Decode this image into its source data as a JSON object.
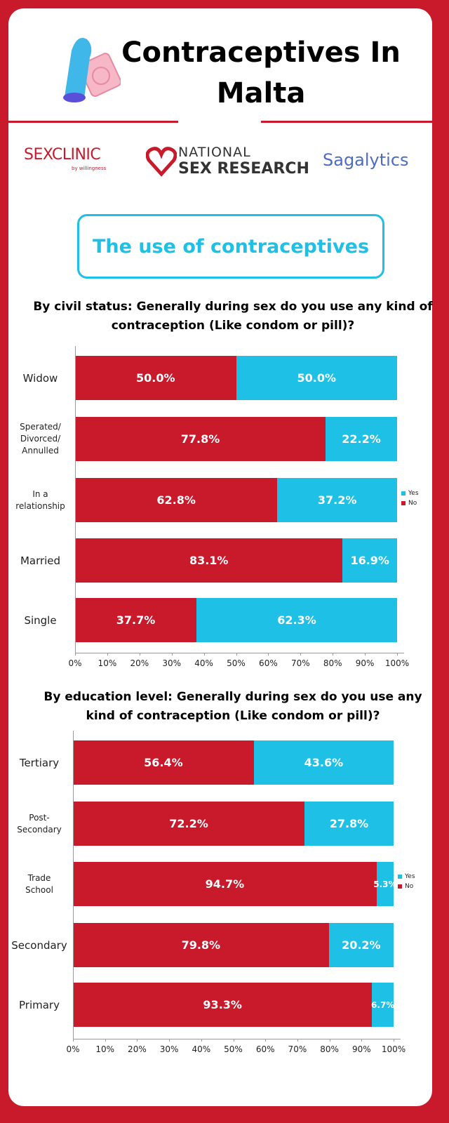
{
  "header": {
    "title": "Contraceptives In Malta",
    "section_title": "The use of contraceptives",
    "logos": {
      "sex_clinic": "SEXCLINIC",
      "sex_clinic_tagline": "by willingness",
      "national_top": "NATIONAL",
      "national_bottom": "SEX RESEARCH",
      "sagalytics": "Sagalytics"
    }
  },
  "chart_data": [
    {
      "type": "stacked-bar-horizontal",
      "title": "By civil status: Generally during sex do you use any kind of contraception (Like condom or pill)?",
      "categories": [
        "Widow",
        "Sperated/\nDivorced/\nAnnulled",
        "In a\nrelationship",
        "Married",
        "Single"
      ],
      "series": [
        {
          "name": "No",
          "color": "#c91a2b",
          "values": [
            50,
            77.8,
            62.8,
            83.1,
            37.7
          ],
          "value_labels": [
            "50.0%",
            "77.8%",
            "62.8%",
            "83.1%",
            "37.7%"
          ]
        },
        {
          "name": "Yes",
          "color": "#1ec0e6",
          "values": [
            50,
            22.2,
            37.2,
            16.9,
            62.3
          ],
          "value_labels": [
            "50.0%",
            "22.2%",
            "37.2%",
            "16.9%",
            "62.3%"
          ]
        }
      ],
      "xlim": [
        0,
        100
      ],
      "xticks": [
        {
          "value": 0,
          "label": "0%"
        },
        {
          "value": 10,
          "label": "10%"
        },
        {
          "value": 20,
          "label": "20%"
        },
        {
          "value": 30,
          "label": "30%"
        },
        {
          "value": 40,
          "label": "40%"
        },
        {
          "value": 50,
          "label": "50%"
        },
        {
          "value": 60,
          "label": "60%"
        },
        {
          "value": 70,
          "label": "70%"
        },
        {
          "value": 80,
          "label": "80%"
        },
        {
          "value": 90,
          "label": "90%"
        },
        {
          "value": 100,
          "label": "100%"
        }
      ],
      "grid": false,
      "legend": "right"
    },
    {
      "type": "stacked-bar-horizontal",
      "title": "By education level: Generally during sex do you use any kind of contraception (Like condom or pill)?",
      "categories": [
        "Tertiary",
        "Post-\nSecondary",
        "Trade\nSchool",
        "Secondary",
        "Primary"
      ],
      "series": [
        {
          "name": "No",
          "color": "#c91a2b",
          "values": [
            56.4,
            72.2,
            94.7,
            79.8,
            93.3
          ],
          "value_labels": [
            "56.4%",
            "72.2%",
            "94.7%",
            "79.8%",
            "93.3%"
          ]
        },
        {
          "name": "Yes",
          "color": "#1ec0e6",
          "values": [
            43.6,
            27.8,
            5.3,
            20.2,
            6.7
          ],
          "value_labels": [
            "43.6%",
            "27.8%",
            "5.3%",
            "20.2%",
            "6.7%"
          ]
        }
      ],
      "xlim": [
        0,
        100
      ],
      "xticks": [
        {
          "value": 0,
          "label": "0%"
        },
        {
          "value": 10,
          "label": "10%"
        },
        {
          "value": 20,
          "label": "20%"
        },
        {
          "value": 30,
          "label": "30%"
        },
        {
          "value": 40,
          "label": "40%"
        },
        {
          "value": 50,
          "label": "50%"
        },
        {
          "value": 60,
          "label": "60%"
        },
        {
          "value": 70,
          "label": "70%"
        },
        {
          "value": 80,
          "label": "80%"
        },
        {
          "value": 90,
          "label": "90%"
        },
        {
          "value": 100,
          "label": "100%"
        }
      ],
      "grid": false,
      "legend": "right"
    }
  ]
}
